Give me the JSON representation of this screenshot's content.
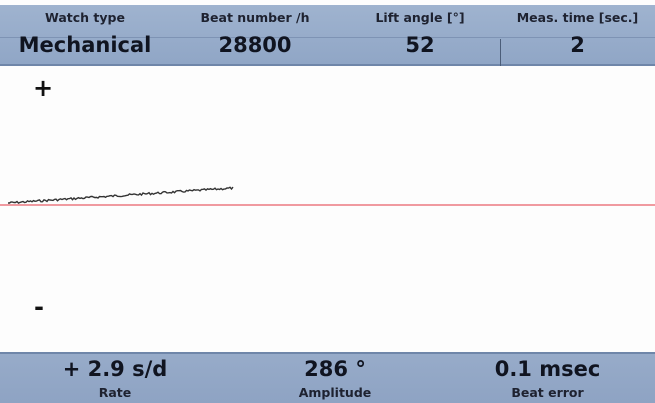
{
  "header": {
    "columns": [
      {
        "label": "Watch type",
        "value": "Mechanical"
      },
      {
        "label": "Beat number /h",
        "value": "28800"
      },
      {
        "label": "Lift angle [°]",
        "value": "52"
      },
      {
        "label": "Meas. time [sec.]",
        "value": "2"
      }
    ]
  },
  "plot": {
    "plus_sign": "+",
    "minus_sign": "-",
    "trace_color": "#333333",
    "reference_line_color": "#e8606a"
  },
  "footer": {
    "rate": {
      "value": "+ 2.9 s/d",
      "label": "Rate"
    },
    "amplitude": {
      "value": "286 °",
      "label": "Amplitude"
    },
    "beat_error": {
      "value": "0.1 msec",
      "label": "Beat error"
    }
  }
}
